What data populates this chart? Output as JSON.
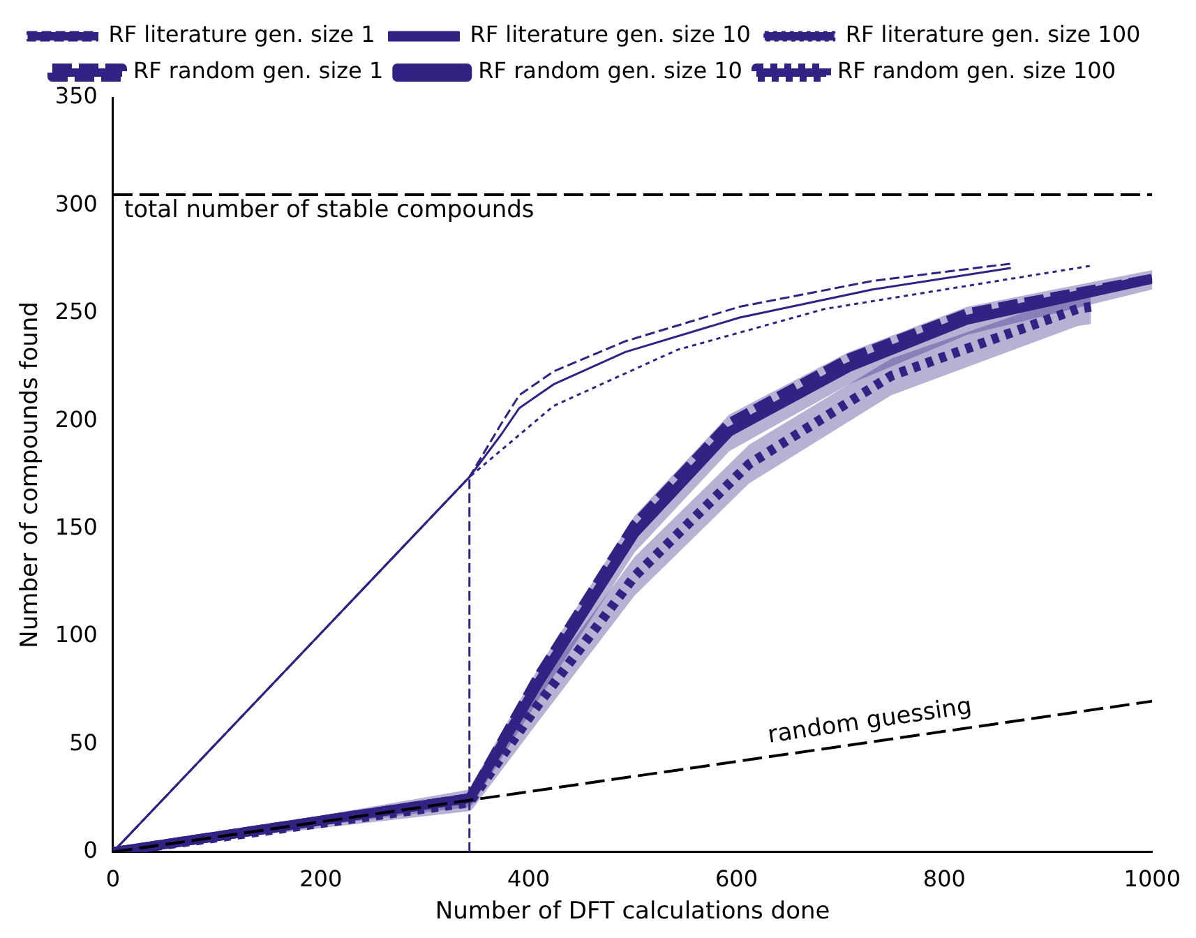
{
  "chart_data": {
    "type": "line",
    "xlabel": "Number of DFT calculations done",
    "ylabel": "Number of compounds found",
    "xlim": [
      0,
      1000
    ],
    "ylim": [
      0,
      350
    ],
    "xticks": [
      0,
      200,
      400,
      600,
      800,
      1000
    ],
    "yticks": [
      0,
      50,
      100,
      150,
      200,
      250,
      300,
      350
    ],
    "grid": false,
    "legend": "top",
    "marker": "none",
    "series": [
      {
        "name": "RF literature gen. size 1",
        "color": "#312283",
        "line_style": "dashed",
        "x": [
          0,
          343,
          374,
          391,
          424,
          493,
          603,
          731,
          864
        ],
        "values": [
          0,
          174,
          199,
          212,
          223,
          237,
          253,
          265,
          273
        ]
      },
      {
        "name": "RF literature gen. size 10",
        "color": "#312283",
        "line_style": "solid",
        "x": [
          0,
          343,
          374,
          391,
          424,
          493,
          603,
          731,
          864
        ],
        "values": [
          0,
          174,
          194,
          206,
          217,
          232,
          248,
          261,
          271
        ]
      },
      {
        "name": "RF literature gen. size 100",
        "color": "#312283",
        "line_style": "dotted",
        "x": [
          0,
          343,
          424,
          543,
          685,
          941
        ],
        "values": [
          0,
          174,
          207,
          233,
          252,
          272
        ]
      },
      {
        "name": "RF random gen. size 1",
        "color": "#312283",
        "line_style": "dashed",
        "x": [
          0,
          343,
          346,
          410,
          502,
          593,
          708,
          822,
          1000
        ],
        "values": [
          0,
          25,
          27,
          82,
          152,
          199,
          229,
          250,
          266
        ]
      },
      {
        "name": "RF random gen. size 10",
        "color": "#312283",
        "line_style": "solid",
        "x": [
          0,
          343,
          346,
          410,
          502,
          593,
          708,
          822,
          1000
        ],
        "values": [
          0,
          25,
          27,
          79,
          148,
          195,
          225,
          247,
          266
        ],
        "lower": [
          0,
          21,
          22,
          71,
          139,
          186,
          217,
          240,
          261
        ],
        "upper": [
          0,
          29,
          32,
          86,
          156,
          203,
          232,
          253,
          270
        ]
      },
      {
        "name": "RF random gen. size 100",
        "color": "#312283",
        "line_style": "dotted",
        "x": [
          0,
          343,
          346,
          410,
          502,
          612,
          749,
          928,
          941
        ],
        "values": [
          0,
          23,
          25,
          69,
          128,
          180,
          221,
          252,
          253
        ],
        "lower": [
          0,
          19,
          20,
          61,
          119,
          171,
          212,
          244,
          245
        ],
        "upper": [
          0,
          27,
          30,
          77,
          137,
          189,
          229,
          259,
          261
        ]
      },
      {
        "color": "#312283",
        "line_style": "dashed",
        "x": [
          343,
          343
        ],
        "values": [
          0,
          175
        ]
      },
      {
        "color": "#000000",
        "line_style": "dashed",
        "x": [
          0,
          1000
        ],
        "values": [
          0,
          70
        ]
      }
    ],
    "ref_lines": [
      {
        "axis": "y",
        "value": 305,
        "label": "total number of stable compounds",
        "color": "#000000",
        "line_style": "dashed"
      }
    ],
    "annotations": [
      "random guessing"
    ]
  }
}
